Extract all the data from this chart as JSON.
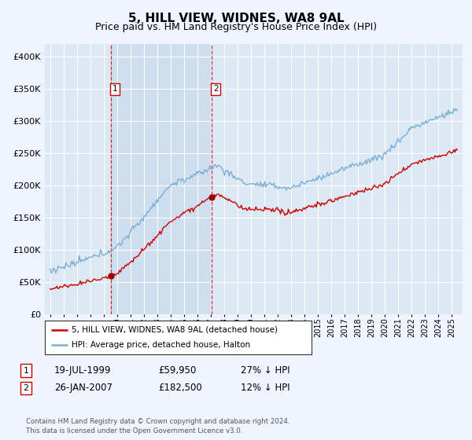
{
  "title": "5, HILL VIEW, WIDNES, WA8 9AL",
  "subtitle": "Price paid vs. HM Land Registry's House Price Index (HPI)",
  "ylim": [
    0,
    420000
  ],
  "yticks": [
    0,
    50000,
    100000,
    150000,
    200000,
    250000,
    300000,
    350000,
    400000
  ],
  "ytick_labels": [
    "£0",
    "£50K",
    "£100K",
    "£150K",
    "£200K",
    "£250K",
    "£300K",
    "£350K",
    "£400K"
  ],
  "background_color": "#f0f4ff",
  "plot_bg_color": "#dde8f5",
  "shade_color": "#ccddf0",
  "grid_color": "#ffffff",
  "line1_color": "#cc0000",
  "line2_color": "#7ab0d4",
  "marker1_color": "#990000",
  "sale1_date": 1999.55,
  "sale1_price": 59950,
  "sale2_date": 2007.07,
  "sale2_price": 182500,
  "legend1": "5, HILL VIEW, WIDNES, WA8 9AL (detached house)",
  "legend2": "HPI: Average price, detached house, Halton",
  "annotation1_label": "1",
  "annotation1_date": "19-JUL-1999",
  "annotation1_price": "£59,950",
  "annotation1_hpi": "27% ↓ HPI",
  "annotation2_label": "2",
  "annotation2_date": "26-JAN-2007",
  "annotation2_price": "£182,500",
  "annotation2_hpi": "12% ↓ HPI",
  "footer": "Contains HM Land Registry data © Crown copyright and database right 2024.\nThis data is licensed under the Open Government Licence v3.0.",
  "title_fontsize": 11,
  "subtitle_fontsize": 9,
  "tick_fontsize": 8
}
